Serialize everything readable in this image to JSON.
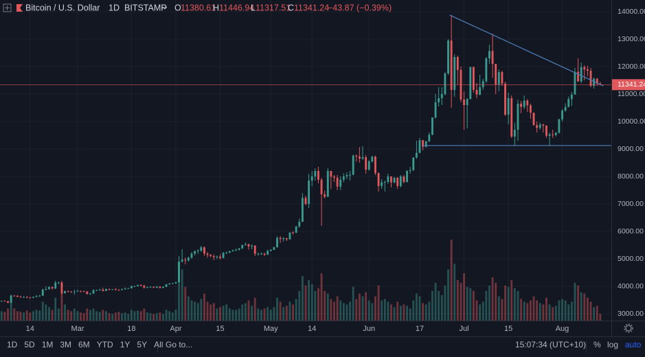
{
  "header": {
    "symbol": "Bitcoin / U.S. Dollar",
    "interval": "1D",
    "exchange": "BITSTAMP",
    "ohlc_labels": [
      "O",
      "H",
      "L",
      "C"
    ],
    "change": "−43.87 (−0.39%)"
  },
  "chart_data": {
    "type": "candlestick",
    "up_color": "#3b9a8f",
    "down_color": "#e0575c",
    "grid": true,
    "xlim": [
      -0.5,
      192.5
    ],
    "ylim": [
      2750,
      14425
    ],
    "xticks": [
      {
        "value": 9,
        "label": "14"
      },
      {
        "value": 24,
        "label": "Mar"
      },
      {
        "value": 41,
        "label": "18"
      },
      {
        "value": 55,
        "label": "Apr"
      },
      {
        "value": 69,
        "label": "15"
      },
      {
        "value": 85,
        "label": "May"
      },
      {
        "value": 98,
        "label": "14"
      },
      {
        "value": 116,
        "label": "Jun"
      },
      {
        "value": 132,
        "label": "17"
      },
      {
        "value": 146,
        "label": "Jul"
      },
      {
        "value": 160,
        "label": "15"
      },
      {
        "value": 177,
        "label": "Aug"
      }
    ],
    "yticks": [
      {
        "value": 3000,
        "label": "3000.00"
      },
      {
        "value": 4000,
        "label": "4000.00"
      },
      {
        "value": 5000,
        "label": "5000.00"
      },
      {
        "value": 6000,
        "label": "6000.00"
      },
      {
        "value": 7000,
        "label": "7000.00"
      },
      {
        "value": 8000,
        "label": "8000.00"
      },
      {
        "value": 9000,
        "label": "9000.00"
      },
      {
        "value": 10000,
        "label": "10000.00"
      },
      {
        "value": 11000,
        "label": "11000.00"
      },
      {
        "value": 12000,
        "label": "12000.00"
      },
      {
        "value": 13000,
        "label": "13000.00"
      },
      {
        "value": 14000,
        "label": "14000.00"
      }
    ],
    "candles": [
      [
        3460,
        3480,
        3440,
        3470
      ],
      [
        3470,
        3490,
        3450,
        3455
      ],
      [
        3455,
        3470,
        3380,
        3400
      ],
      [
        3400,
        3700,
        3390,
        3660
      ],
      [
        3660,
        3680,
        3630,
        3650
      ],
      [
        3650,
        3680,
        3600,
        3620
      ],
      [
        3620,
        3660,
        3590,
        3600
      ],
      [
        3600,
        3640,
        3580,
        3610
      ],
      [
        3610,
        3640,
        3570,
        3590
      ],
      [
        3590,
        3620,
        3560,
        3580
      ],
      [
        3580,
        3630,
        3570,
        3610
      ],
      [
        3610,
        3680,
        3600,
        3640
      ],
      [
        3640,
        3680,
        3620,
        3660
      ],
      [
        3660,
        3910,
        3650,
        3880
      ],
      [
        3880,
        4000,
        3850,
        3900
      ],
      [
        3900,
        4000,
        3870,
        3970
      ],
      [
        3970,
        3990,
        3880,
        3920
      ],
      [
        3920,
        4200,
        3900,
        4130
      ],
      [
        4130,
        4170,
        4080,
        4140
      ],
      [
        4140,
        4200,
        3700,
        3750
      ],
      [
        3750,
        3850,
        3730,
        3820
      ],
      [
        3820,
        3850,
        3780,
        3800
      ],
      [
        3800,
        3830,
        3770,
        3790
      ],
      [
        3790,
        3880,
        3690,
        3810
      ],
      [
        3810,
        3880,
        3800,
        3830
      ],
      [
        3830,
        3840,
        3780,
        3820
      ],
      [
        3820,
        3840,
        3790,
        3810
      ],
      [
        3810,
        3820,
        3700,
        3720
      ],
      [
        3720,
        3760,
        3690,
        3740
      ],
      [
        3740,
        3890,
        3720,
        3860
      ],
      [
        3860,
        3880,
        3830,
        3860
      ],
      [
        3860,
        3910,
        3840,
        3880
      ],
      [
        3880,
        3950,
        3810,
        3830
      ],
      [
        3830,
        3920,
        3820,
        3900
      ],
      [
        3900,
        3920,
        3850,
        3880
      ],
      [
        3880,
        3900,
        3860,
        3890
      ],
      [
        3890,
        3940,
        3850,
        3880
      ],
      [
        3880,
        3890,
        3830,
        3870
      ],
      [
        3870,
        3920,
        3850,
        3890
      ],
      [
        3890,
        3960,
        3880,
        3920
      ],
      [
        3920,
        3940,
        3900,
        3930
      ],
      [
        3930,
        4030,
        3920,
        4000
      ],
      [
        4000,
        4020,
        3970,
        4010
      ],
      [
        4010,
        4060,
        3990,
        4050
      ],
      [
        4050,
        4070,
        4000,
        4020
      ],
      [
        4020,
        4060,
        3910,
        3950
      ],
      [
        3950,
        3990,
        3930,
        3970
      ],
      [
        3970,
        4000,
        3950,
        3980
      ],
      [
        3980,
        3990,
        3930,
        3950
      ],
      [
        3950,
        4010,
        3930,
        3990
      ],
      [
        3990,
        4000,
        3920,
        3940
      ],
      [
        3940,
        4000,
        3930,
        3980
      ],
      [
        3980,
        4090,
        3970,
        4070
      ],
      [
        4070,
        4120,
        4060,
        4100
      ],
      [
        4100,
        4130,
        4080,
        4110
      ],
      [
        4110,
        4160,
        4090,
        4150
      ],
      [
        4150,
        5100,
        4140,
        4900
      ],
      [
        4900,
        5350,
        4860,
        4970
      ],
      [
        4970,
        5050,
        4800,
        4940
      ],
      [
        4940,
        5080,
        4900,
        5040
      ],
      [
        5040,
        5250,
        5000,
        5190
      ],
      [
        5190,
        5300,
        5120,
        5280
      ],
      [
        5280,
        5350,
        5180,
        5300
      ],
      [
        5300,
        5470,
        5250,
        5420
      ],
      [
        5420,
        5450,
        5100,
        5190
      ],
      [
        5190,
        5250,
        5040,
        5140
      ],
      [
        5140,
        5180,
        5050,
        5100
      ],
      [
        5100,
        5160,
        4950,
        5060
      ],
      [
        5060,
        5120,
        4990,
        5080
      ],
      [
        5080,
        5170,
        4980,
        5030
      ],
      [
        5030,
        5250,
        5020,
        5220
      ],
      [
        5220,
        5260,
        5180,
        5230
      ],
      [
        5230,
        5290,
        5200,
        5280
      ],
      [
        5280,
        5340,
        5260,
        5310
      ],
      [
        5310,
        5370,
        5280,
        5330
      ],
      [
        5330,
        5400,
        5300,
        5380
      ],
      [
        5380,
        5520,
        5360,
        5500
      ],
      [
        5500,
        5600,
        5480,
        5530
      ],
      [
        5530,
        5550,
        5330,
        5450
      ],
      [
        5450,
        5530,
        5350,
        5480
      ],
      [
        5480,
        5500,
        5100,
        5180
      ],
      [
        5180,
        5230,
        5120,
        5180
      ],
      [
        5180,
        5230,
        5140,
        5190
      ],
      [
        5190,
        5220,
        5100,
        5150
      ],
      [
        5150,
        5330,
        5140,
        5290
      ],
      [
        5290,
        5350,
        5270,
        5330
      ],
      [
        5330,
        5440,
        5320,
        5420
      ],
      [
        5420,
        5820,
        5410,
        5760
      ],
      [
        5760,
        5830,
        5580,
        5720
      ],
      [
        5720,
        5790,
        5630,
        5750
      ],
      [
        5750,
        5760,
        5650,
        5710
      ],
      [
        5710,
        5960,
        5700,
        5960
      ],
      [
        5960,
        6000,
        5880,
        5950
      ],
      [
        5950,
        6200,
        5940,
        6180
      ],
      [
        6180,
        6460,
        6130,
        6350
      ],
      [
        6350,
        7400,
        6340,
        7220
      ],
      [
        7220,
        7300,
        6950,
        7000
      ],
      [
        7000,
        8100,
        6850,
        7850
      ],
      [
        7850,
        8200,
        7650,
        8000
      ],
      [
        8000,
        8300,
        7850,
        8200
      ],
      [
        8200,
        8350,
        7750,
        7880
      ],
      [
        7880,
        7950,
        6200,
        7350
      ],
      [
        7350,
        7480,
        7200,
        7260
      ],
      [
        7260,
        8300,
        7250,
        8200
      ],
      [
        8200,
        8200,
        7550,
        7990
      ],
      [
        7990,
        8050,
        7800,
        7950
      ],
      [
        7950,
        8050,
        7500,
        7630
      ],
      [
        7630,
        8000,
        7500,
        7880
      ],
      [
        7880,
        8120,
        7790,
        8000
      ],
      [
        8000,
        8150,
        7900,
        8050
      ],
      [
        8050,
        8200,
        7850,
        8060
      ],
      [
        8060,
        8800,
        8050,
        8760
      ],
      [
        8760,
        8800,
        8540,
        8730
      ],
      [
        8730,
        9070,
        8500,
        8650
      ],
      [
        8650,
        9100,
        8600,
        8700
      ],
      [
        8700,
        8780,
        8100,
        8250
      ],
      [
        8250,
        8600,
        8200,
        8550
      ],
      [
        8550,
        8750,
        8500,
        8720
      ],
      [
        8720,
        8760,
        8050,
        8120
      ],
      [
        8120,
        8150,
        7450,
        7650
      ],
      [
        7650,
        7900,
        7550,
        7790
      ],
      [
        7790,
        7850,
        7450,
        7800
      ],
      [
        7800,
        8100,
        7730,
        8000
      ],
      [
        8000,
        8000,
        7600,
        7780
      ],
      [
        7780,
        7980,
        7750,
        7950
      ],
      [
        7950,
        7980,
        7550,
        7650
      ],
      [
        7650,
        8050,
        7600,
        8000
      ],
      [
        8000,
        8050,
        7750,
        7800
      ],
      [
        7800,
        8230,
        7780,
        8200
      ],
      [
        8200,
        8350,
        8100,
        8230
      ],
      [
        8230,
        8700,
        8200,
        8690
      ],
      [
        8690,
        9300,
        8640,
        8860
      ],
      [
        8860,
        9400,
        8850,
        9320
      ],
      [
        9320,
        9330,
        8950,
        9080
      ],
      [
        9080,
        9300,
        9050,
        9280
      ],
      [
        9280,
        9600,
        9250,
        9520
      ],
      [
        9520,
        10150,
        9500,
        10150
      ],
      [
        10150,
        11000,
        10100,
        10700
      ],
      [
        10700,
        11250,
        10550,
        10850
      ],
      [
        10850,
        11250,
        10600,
        11000
      ],
      [
        11000,
        11800,
        10950,
        11750
      ],
      [
        11750,
        13000,
        11700,
        12950
      ],
      [
        12950,
        13880,
        10500,
        11150
      ],
      [
        11150,
        12450,
        10900,
        12350
      ],
      [
        12350,
        12400,
        11350,
        11880
      ],
      [
        11880,
        12000,
        10700,
        10800
      ],
      [
        10800,
        11100,
        9700,
        10600
      ],
      [
        10600,
        10850,
        9750,
        10820
      ],
      [
        10820,
        12000,
        10800,
        11980
      ],
      [
        11980,
        12000,
        11050,
        11150
      ],
      [
        11150,
        11400,
        10850,
        10980
      ],
      [
        10980,
        11700,
        10950,
        11250
      ],
      [
        11250,
        11550,
        11150,
        11470
      ],
      [
        11470,
        12350,
        11400,
        12300
      ],
      [
        12300,
        12800,
        12100,
        12570
      ],
      [
        12570,
        13200,
        11600,
        12100
      ],
      [
        12100,
        12100,
        11000,
        11350
      ],
      [
        11350,
        11900,
        11100,
        11800
      ],
      [
        11800,
        11850,
        11300,
        11380
      ],
      [
        11380,
        11450,
        10200,
        10250
      ],
      [
        10250,
        11050,
        9900,
        10850
      ],
      [
        10850,
        10950,
        9400,
        9450
      ],
      [
        9450,
        9950,
        9100,
        9700
      ],
      [
        9700,
        10800,
        9300,
        10650
      ],
      [
        10650,
        10750,
        10300,
        10530
      ],
      [
        10530,
        10950,
        10450,
        10760
      ],
      [
        10760,
        10820,
        10350,
        10590
      ],
      [
        10590,
        10650,
        10100,
        10320
      ],
      [
        10320,
        10320,
        9850,
        9870
      ],
      [
        9870,
        10000,
        9600,
        9770
      ],
      [
        9770,
        9960,
        9700,
        9890
      ],
      [
        9890,
        9920,
        9600,
        9850
      ],
      [
        9850,
        9860,
        9400,
        9480
      ],
      [
        9480,
        9600,
        9100,
        9530
      ],
      [
        9530,
        9700,
        9400,
        9510
      ],
      [
        9510,
        9620,
        9460,
        9590
      ],
      [
        9590,
        10100,
        9560,
        10080
      ],
      [
        10080,
        10450,
        10000,
        10400
      ],
      [
        10400,
        10670,
        10350,
        10530
      ],
      [
        10530,
        10910,
        10520,
        10820
      ],
      [
        10820,
        11080,
        10570,
        10980
      ],
      [
        10980,
        11950,
        10980,
        11810
      ],
      [
        11810,
        12300,
        11450,
        11460
      ],
      [
        11460,
        12150,
        11400,
        11980
      ],
      [
        11980,
        12050,
        11500,
        11900
      ],
      [
        11900,
        12030,
        11650,
        11850
      ],
      [
        11850,
        11950,
        11250,
        11300
      ],
      [
        11300,
        11600,
        11200,
        11560
      ],
      [
        11560,
        11580,
        11300,
        11380
      ],
      [
        11380.61,
        11446.94,
        11317.51,
        11341.24
      ]
    ],
    "volume": [
      7000,
      6500,
      9000,
      16000,
      9000,
      7000,
      6500,
      6000,
      7500,
      6000,
      7000,
      8000,
      7500,
      14000,
      12000,
      10000,
      8000,
      17000,
      9000,
      22000,
      12000,
      8000,
      7000,
      9000,
      7000,
      6000,
      5500,
      9000,
      8000,
      9000,
      7000,
      6500,
      8000,
      7000,
      5500,
      5000,
      6000,
      6500,
      5500,
      6000,
      5000,
      8000,
      7000,
      7500,
      7000,
      9000,
      6000,
      5500,
      5000,
      5500,
      6000,
      5000,
      8000,
      7000,
      6000,
      8000,
      42000,
      38000,
      25000,
      18000,
      15000,
      14000,
      13000,
      16000,
      20000,
      14000,
      12000,
      13000,
      9000,
      10000,
      11000,
      12000,
      9000,
      8000,
      8000,
      9000,
      12000,
      13000,
      15000,
      11000,
      17000,
      9000,
      8000,
      9000,
      10000,
      8000,
      10000,
      17000,
      14000,
      10000,
      11000,
      14000,
      12000,
      16000,
      22000,
      33000,
      26000,
      30000,
      27000,
      22000,
      24000,
      35000,
      22000,
      20000,
      16000,
      14000,
      18000,
      15000,
      13000,
      12000,
      14000,
      25000,
      16000,
      20000,
      18000,
      21000,
      15000,
      13000,
      18000,
      26000,
      15000,
      16000,
      14000,
      12000,
      10000,
      14000,
      11000,
      12000,
      11000,
      9000,
      15000,
      20000,
      18000,
      13000,
      12000,
      14000,
      22000,
      28000,
      22000,
      19000,
      26000,
      38000,
      60000,
      42000,
      30000,
      28000,
      35000,
      25000,
      24000,
      22000,
      15000,
      12000,
      14000,
      22000,
      26000,
      32000,
      28000,
      18000,
      16000,
      26000,
      25000,
      30000,
      24000,
      22000,
      16000,
      14000,
      13000,
      15000,
      18000,
      15000,
      13000,
      12000,
      17000,
      12000,
      10000,
      11000,
      15000,
      16000,
      15000,
      12000,
      14000,
      28000,
      26000,
      21000,
      20000,
      17000,
      14000,
      10000,
      11000,
      5000
    ],
    "drawings": [
      {
        "color": "#4a78b0",
        "points": [
          [
            141.5,
            13875
          ],
          [
            190,
            11300
          ]
        ]
      },
      {
        "color": "#4a78b0",
        "points": [
          [
            133,
            9125
          ],
          [
            192.5,
            9125
          ]
        ]
      }
    ]
  },
  "toolbar": {
    "ranges": [
      "1D",
      "5D",
      "1M",
      "3M",
      "6M",
      "YTD",
      "1Y",
      "5Y",
      "All"
    ],
    "goto": "Go to...",
    "clock": "15:07:34 (UTC+10)",
    "scale_options": [
      "%",
      "log",
      "auto"
    ]
  }
}
